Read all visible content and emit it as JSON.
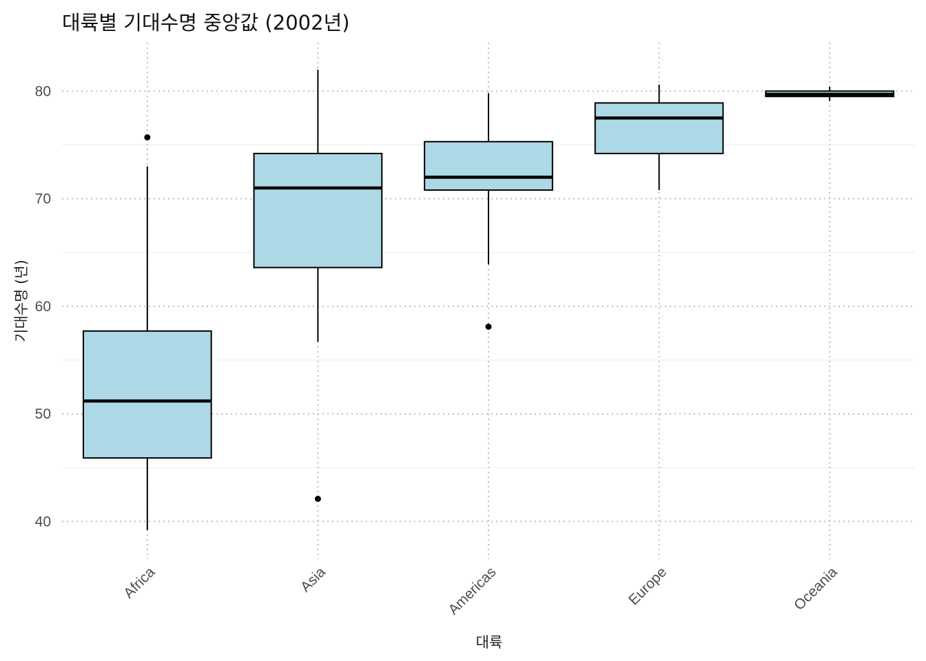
{
  "chart_data": {
    "type": "boxplot",
    "title": "대륙별 기대수명 중앙값 (2002년)",
    "xlabel": "대륙",
    "ylabel": "기대수명 (년)",
    "ylim": [
      36.5,
      84.5
    ],
    "yticks": [
      40,
      50,
      60,
      70,
      80
    ],
    "grid": true,
    "box_fill": "#add8e6",
    "box_stroke": "#000000",
    "categories": [
      "Africa",
      "Asia",
      "Americas",
      "Europe",
      "Oceania"
    ],
    "boxes": [
      {
        "category": "Africa",
        "whisker_low": 39.2,
        "q1": 45.9,
        "median": 51.2,
        "q3": 57.7,
        "whisker_high": 73.0,
        "outliers": [
          75.7
        ]
      },
      {
        "category": "Asia",
        "whisker_low": 56.7,
        "q1": 63.6,
        "median": 71.0,
        "q3": 74.2,
        "whisker_high": 82.0,
        "outliers": [
          42.1
        ]
      },
      {
        "category": "Americas",
        "whisker_low": 63.9,
        "q1": 70.8,
        "median": 72.0,
        "q3": 75.3,
        "whisker_high": 79.8,
        "outliers": [
          58.1
        ]
      },
      {
        "category": "Europe",
        "whisker_low": 70.8,
        "q1": 74.2,
        "median": 77.5,
        "q3": 78.9,
        "whisker_high": 80.6,
        "outliers": []
      },
      {
        "category": "Oceania",
        "whisker_low": 79.1,
        "q1": 79.5,
        "median": 79.7,
        "q3": 80.0,
        "whisker_high": 80.4,
        "outliers": []
      }
    ]
  }
}
